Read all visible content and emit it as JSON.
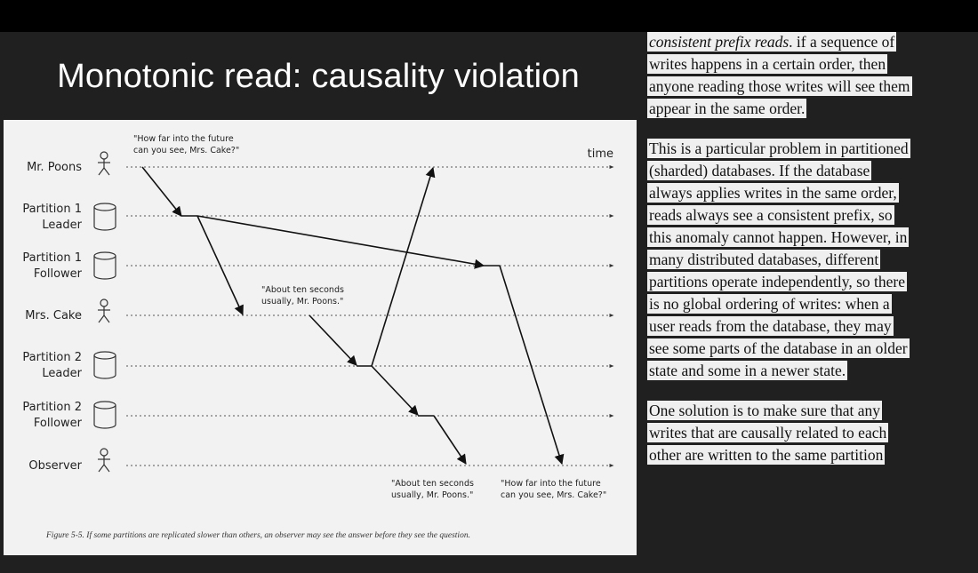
{
  "slide": {
    "title": "Monotonic read: causality violation"
  },
  "figure": {
    "time_label": "time",
    "lanes": [
      {
        "id": "mr-poons",
        "label_lines": [
          "Mr. Poons"
        ],
        "icon": "person-icon"
      },
      {
        "id": "p1-leader",
        "label_lines": [
          "Partition 1",
          "Leader"
        ],
        "icon": "database-icon"
      },
      {
        "id": "p1-follower",
        "label_lines": [
          "Partition 1",
          "Follower"
        ],
        "icon": "database-icon"
      },
      {
        "id": "mrs-cake",
        "label_lines": [
          "Mrs. Cake"
        ],
        "icon": "person-icon"
      },
      {
        "id": "p2-leader",
        "label_lines": [
          "Partition 2",
          "Leader"
        ],
        "icon": "database-icon"
      },
      {
        "id": "p2-follower",
        "label_lines": [
          "Partition 2",
          "Follower"
        ],
        "icon": "database-icon"
      },
      {
        "id": "observer",
        "label_lines": [
          "Observer"
        ],
        "icon": "person-icon"
      }
    ],
    "quotes": {
      "question_top": [
        "\"How far into the future",
        "can you see, Mrs. Cake?\""
      ],
      "answer_mid": [
        "\"About ten seconds",
        "usually, Mr. Poons.\""
      ],
      "answer_bottom": [
        "\"About ten seconds",
        "usually, Mr. Poons.\""
      ],
      "question_bottom": [
        "\"How far into the future",
        "can you see, Mrs. Cake?\""
      ]
    },
    "caption": "Figure 5-5. If some partitions are replicated slower than others, an observer may see the answer before they see the question."
  },
  "notes": {
    "paragraphs": [
      [
        {
          "text": "consistent prefix reads",
          "italic": true,
          "suffix": ". if a sequence of"
        },
        {
          "text": "writes happens in a certain order, then"
        },
        {
          "text": "anyone reading those writes will see them"
        },
        {
          "text": "appear in the same order."
        }
      ],
      [
        {
          "text": "This is a particular problem in partitioned"
        },
        {
          "text": "(sharded) databases. If the database"
        },
        {
          "text": "always applies writes in the same order,"
        },
        {
          "text": "reads always see a consistent prefix, so"
        },
        {
          "text": "this anomaly cannot happen. However, in"
        },
        {
          "text": "many distributed databases, different"
        },
        {
          "text": "partitions operate independently, so there"
        },
        {
          "text": "is no global ordering of writes: when a"
        },
        {
          "text": "user reads from the database, they may"
        },
        {
          "text": "see some parts of the database in an older"
        },
        {
          "text": "state and some in a newer state."
        }
      ],
      [
        {
          "text": "One solution is to make sure that any"
        },
        {
          "text": "writes that are causally related to each"
        },
        {
          "text": "other are written to the same partition"
        }
      ]
    ]
  }
}
